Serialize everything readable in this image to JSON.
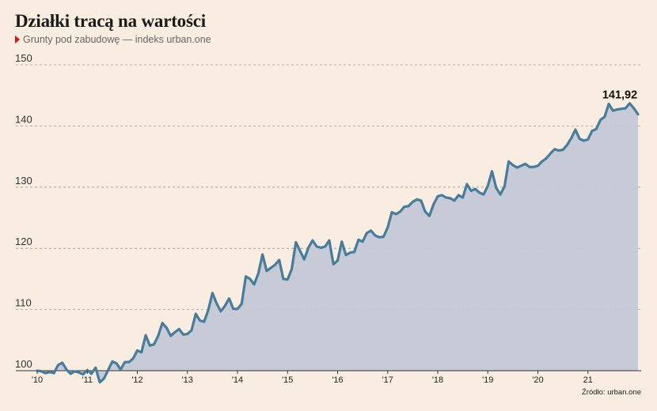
{
  "title": "Działki tracą na wartości",
  "subtitle": "Grunty pod zabudowę — indeks urban.one",
  "source": "Źródło: urban.one",
  "colors": {
    "line": "#477d9b",
    "area": "#c4c8d6",
    "marker": "#e3120b"
  },
  "chart_data": {
    "type": "area",
    "title": "Działki tracą na wartości",
    "subtitle": "Grunty pod zabudowę — indeks urban.one",
    "ylim": [
      100,
      150
    ],
    "yticks": [
      "100",
      "110",
      "120",
      "130",
      "140",
      "150"
    ],
    "xticks": [
      "'10",
      "'11",
      "'12",
      "'13",
      "'14",
      "'15",
      "'16",
      "'17",
      "'18",
      "'19",
      "'20",
      "21"
    ],
    "grid": "horizontal dashed",
    "last_value_label": "141,92",
    "x_start": "2010-01",
    "x_step": "month",
    "values": [
      100.0,
      99.9,
      99.6,
      99.8,
      99.6,
      100.9,
      101.3,
      100.2,
      99.5,
      99.9,
      99.7,
      99.4,
      100.1,
      99.5,
      100.5,
      98.1,
      98.7,
      100.1,
      101.5,
      101.2,
      100.2,
      101.4,
      101.4,
      102.0,
      103.3,
      103.0,
      105.8,
      104.1,
      104.3,
      105.7,
      107.8,
      107.0,
      105.7,
      106.3,
      106.8,
      105.9,
      106.0,
      106.6,
      109.3,
      108.2,
      108.0,
      109.9,
      112.7,
      111.0,
      109.7,
      110.6,
      111.8,
      110.1,
      110.1,
      110.9,
      115.4,
      115.0,
      114.1,
      115.9,
      119.0,
      116.3,
      116.8,
      117.3,
      118.1,
      115.0,
      114.9,
      116.6,
      121.0,
      119.6,
      118.2,
      120.1,
      121.3,
      120.3,
      120.1,
      120.3,
      121.3,
      117.4,
      118.0,
      121.1,
      118.9,
      119.3,
      119.4,
      121.4,
      121.1,
      122.5,
      122.9,
      122.1,
      121.8,
      121.9,
      123.4,
      125.9,
      125.6,
      126.0,
      126.8,
      126.9,
      127.6,
      128.0,
      127.8,
      126.0,
      125.3,
      127.2,
      128.5,
      128.7,
      128.3,
      128.2,
      127.8,
      128.7,
      128.3,
      130.5,
      129.4,
      129.7,
      129.1,
      128.8,
      130.2,
      132.6,
      129.9,
      128.8,
      130.1,
      134.2,
      133.6,
      133.2,
      133.5,
      133.8,
      133.3,
      133.3,
      133.5,
      134.2,
      134.7,
      135.5,
      136.2,
      136.0,
      136.1,
      136.9,
      138.0,
      139.4,
      137.9,
      137.6,
      137.8,
      139.2,
      139.5,
      141.0,
      141.5,
      143.6,
      142.5,
      142.7,
      142.8,
      142.9,
      143.7,
      142.9,
      141.92
    ]
  }
}
